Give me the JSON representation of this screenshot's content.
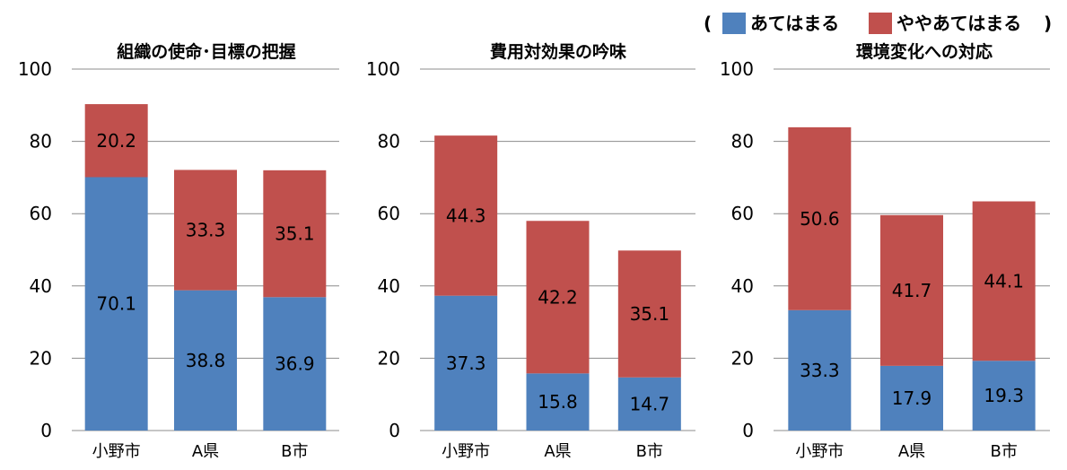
{
  "legend": {
    "open": "(",
    "close": ")",
    "items": [
      {
        "label": "あてはまる",
        "color": "#4f81bd"
      },
      {
        "label": "ややあてはまる",
        "color": "#c0504d"
      }
    ]
  },
  "chart_data": [
    {
      "type": "bar",
      "stacked": true,
      "title": "組織の使命･目標の把握",
      "categories": [
        "小野市",
        "A県",
        "B市"
      ],
      "series": [
        {
          "name": "あてはまる",
          "values": [
            70.1,
            38.8,
            36.9
          ]
        },
        {
          "name": "ややあてはまる",
          "values": [
            20.2,
            33.3,
            35.1
          ]
        }
      ],
      "ylim": [
        0,
        100
      ],
      "yticks": [
        0,
        20,
        40,
        60,
        80,
        100
      ],
      "grid": true,
      "legend_position": "top-right"
    },
    {
      "type": "bar",
      "stacked": true,
      "title": "費用対効果の吟味",
      "categories": [
        "小野市",
        "A県",
        "B市"
      ],
      "series": [
        {
          "name": "あてはまる",
          "values": [
            37.3,
            15.8,
            14.7
          ]
        },
        {
          "name": "ややあてはまる",
          "values": [
            44.3,
            42.2,
            35.1
          ]
        }
      ],
      "ylim": [
        0,
        100
      ],
      "yticks": [
        0,
        20,
        40,
        60,
        80,
        100
      ],
      "grid": true
    },
    {
      "type": "bar",
      "stacked": true,
      "title": "環境変化への対応",
      "categories": [
        "小野市",
        "A県",
        "B市"
      ],
      "series": [
        {
          "name": "あてはまる",
          "values": [
            33.3,
            17.9,
            19.3
          ]
        },
        {
          "name": "ややあてはまる",
          "values": [
            50.6,
            41.7,
            44.1
          ]
        }
      ],
      "ylim": [
        0,
        100
      ],
      "yticks": [
        0,
        20,
        40,
        60,
        80,
        100
      ],
      "grid": true
    }
  ]
}
